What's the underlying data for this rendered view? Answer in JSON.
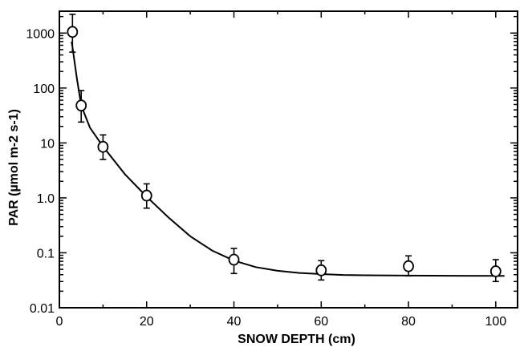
{
  "chart_data": {
    "type": "scatter",
    "title": "",
    "xlabel": "SNOW DEPTH  (cm)",
    "ylabel": "PAR (µmol  m-2 s-1)",
    "xlim": [
      0,
      105
    ],
    "ylim": [
      0.01,
      2500
    ],
    "yscale": "log",
    "grid": false,
    "legend": "none",
    "x_ticks": [
      0,
      20,
      40,
      60,
      80,
      100
    ],
    "x_tick_labels": [
      "0",
      "20",
      "40",
      "60",
      "80",
      "100"
    ],
    "y_ticks": [
      0.01,
      0.1,
      1,
      10,
      100,
      1000
    ],
    "y_tick_labels": [
      "0.01",
      "0.1",
      "1.0",
      "10",
      "100",
      "1000"
    ],
    "series": [
      {
        "style": "open-circle-with-error-bars",
        "points": [
          {
            "x": 3,
            "y": 1050,
            "err_low": 450,
            "err_high": 2200
          },
          {
            "x": 5,
            "y": 48,
            "err_low": 24,
            "err_high": 90
          },
          {
            "x": 10,
            "y": 8.5,
            "err_low": 5,
            "err_high": 14
          },
          {
            "x": 20,
            "y": 1.1,
            "err_low": 0.65,
            "err_high": 1.8
          },
          {
            "x": 40,
            "y": 0.075,
            "err_low": 0.042,
            "err_high": 0.12
          },
          {
            "x": 60,
            "y": 0.048,
            "err_low": 0.032,
            "err_high": 0.072
          },
          {
            "x": 80,
            "y": 0.057,
            "err_low": 0.038,
            "err_high": 0.088
          },
          {
            "x": 100,
            "y": 0.046,
            "err_low": 0.03,
            "err_high": 0.075
          }
        ]
      }
    ],
    "fit_curve": {
      "x": [
        2.8,
        3,
        4,
        5,
        7,
        10,
        15,
        20,
        25,
        30,
        35,
        40,
        45,
        50,
        55,
        60,
        65,
        70,
        80,
        90,
        100,
        102
      ],
      "y": [
        700,
        560,
        150,
        48,
        19,
        8.6,
        2.7,
        1.05,
        0.44,
        0.2,
        0.11,
        0.072,
        0.055,
        0.047,
        0.043,
        0.041,
        0.0395,
        0.039,
        0.0385,
        0.0382,
        0.038,
        0.038
      ]
    }
  }
}
